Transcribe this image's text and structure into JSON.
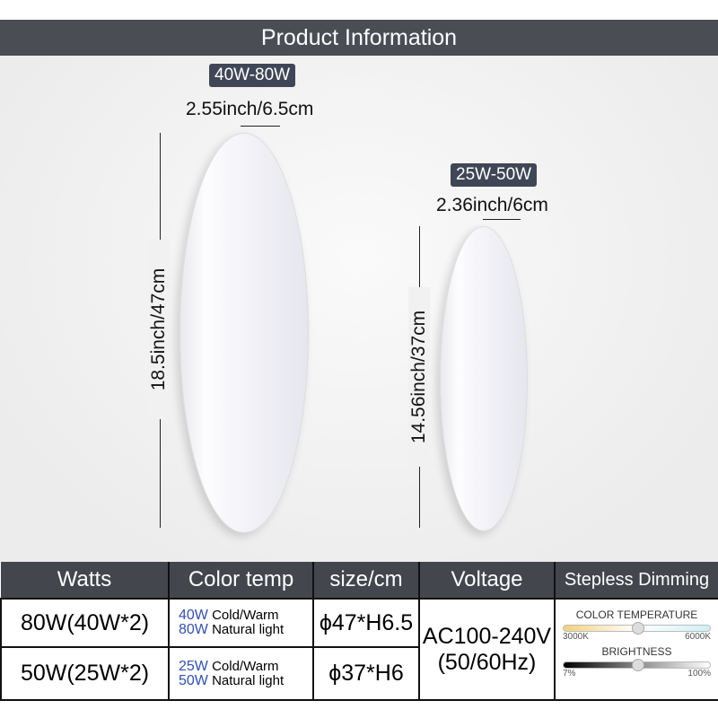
{
  "title": "Product Information",
  "large": {
    "badge": "40W-80W",
    "thickness": "2.55inch/6.5cm",
    "height": "18.5inch/47cm"
  },
  "small": {
    "badge": "25W-50W",
    "thickness": "2.36inch/6cm",
    "height": "14.56inch/37cm"
  },
  "table": {
    "headers": [
      "Watts",
      "Color temp",
      "size/cm",
      "Voltage",
      "Stepless Dimming"
    ],
    "rows": [
      {
        "watts": "80W(40W*2)",
        "ct1w": "40W",
        "ct1": "Cold/Warm",
        "ct2w": "80W",
        "ct2": "Natural light",
        "size": "ϕ47*H6.5"
      },
      {
        "watts": "50W(25W*2)",
        "ct1w": "25W",
        "ct1": "Cold/Warm",
        "ct2w": "50W",
        "ct2": "Natural light",
        "size": "ϕ37*H6"
      }
    ],
    "voltage": "AC100-240V",
    "frequency": "(50/60Hz)",
    "dimming": {
      "color_temp_label": "COLOR TEMPERATURE",
      "ct_min": "3000K",
      "ct_max": "6000K",
      "brightness_label": "BRIGHTNESS",
      "br_min": "7%",
      "br_max": "100%",
      "ct_level": 0.5,
      "br_level": 0.5
    }
  }
}
